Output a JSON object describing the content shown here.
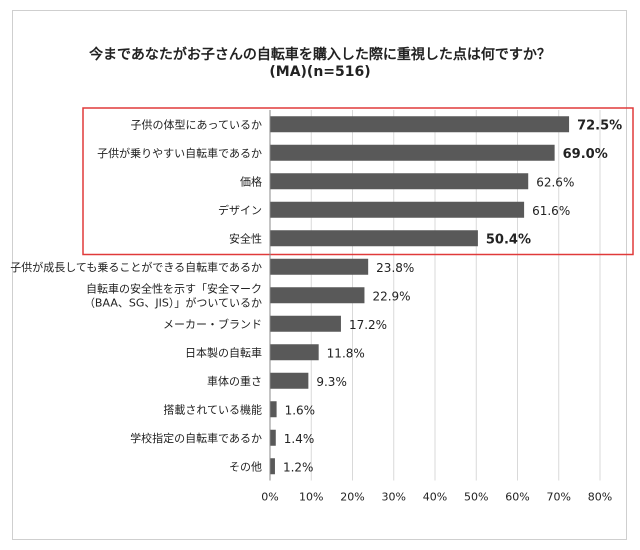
{
  "chart_data": {
    "type": "bar",
    "orientation": "horizontal",
    "title": "今まであなたがお子さんの自転車を購入した際に重視した点は何ですか？",
    "subtitle": "(MA)(n=516)",
    "categories": [
      [
        "子供の体型にあっているか"
      ],
      [
        "子供が乗りやすい自転車であるか"
      ],
      [
        "価格"
      ],
      [
        "デザイン"
      ],
      [
        "安全性"
      ],
      [
        "子供が成長しても乗ることができる自転車であるか"
      ],
      [
        "自転車の安全性を示す「安全マーク",
        "（BAA、SG、JIS）」がついているか"
      ],
      [
        "メーカー・ブランド"
      ],
      [
        "日本製の自転車"
      ],
      [
        "車体の重さ"
      ],
      [
        "搭載されている機能"
      ],
      [
        "学校指定の自転車であるか"
      ],
      [
        "その他"
      ]
    ],
    "values": [
      72.5,
      69.0,
      62.6,
      61.6,
      50.4,
      23.8,
      22.9,
      17.2,
      11.8,
      9.3,
      1.6,
      1.4,
      1.2
    ],
    "value_labels": [
      "72.5%",
      "69.0%",
      "62.6%",
      "61.6%",
      "50.4%",
      "23.8%",
      "22.9%",
      "17.2%",
      "11.8%",
      "9.3%",
      "1.6%",
      "1.4%",
      "1.2%"
    ],
    "bold_labels": [
      true,
      true,
      false,
      false,
      true,
      false,
      false,
      false,
      false,
      false,
      false,
      false,
      false
    ],
    "highlighted_top": 5,
    "xlim": [
      0,
      80
    ],
    "xticks": [
      "0%",
      "10%",
      "20%",
      "30%",
      "40%",
      "50%",
      "60%",
      "70%",
      "80%"
    ],
    "grid": true,
    "colors": {
      "bar": "#595959",
      "highlight_box": "#e03a3a",
      "grid": "#d9d9d9",
      "axis": "#888888"
    }
  }
}
